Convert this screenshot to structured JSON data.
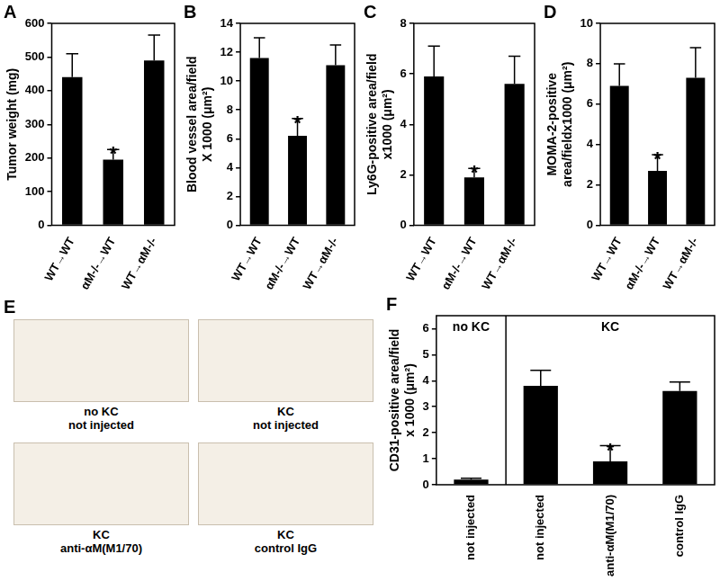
{
  "chart_data": [
    {
      "type": "bar",
      "panel": "A",
      "y_label": [
        "Tumor weight (mg)"
      ],
      "categories": [
        "WT→WT",
        "αM-/-→WT",
        "WT→αM-/-"
      ],
      "values": [
        440,
        195,
        490
      ],
      "errors": [
        70,
        30,
        75
      ],
      "color": "#000000",
      "ylim": [
        0,
        600
      ],
      "yticks": [
        0,
        100,
        200,
        300,
        400,
        500,
        600
      ],
      "grid": false,
      "annotations": [
        {
          "text": "*",
          "category": "αM-/-→WT"
        }
      ]
    },
    {
      "type": "bar",
      "panel": "B",
      "y_label": [
        "Blood vessel area/field",
        "X 1000 (μm²)"
      ],
      "categories": [
        "WT→WT",
        "αM-/-→WT",
        "WT→αM-/-"
      ],
      "values": [
        11.6,
        6.2,
        11.1
      ],
      "errors": [
        1.4,
        1.2,
        1.4
      ],
      "color": "#000000",
      "ylim": [
        0,
        14
      ],
      "yticks": [
        0,
        2,
        4,
        6,
        8,
        10,
        12,
        14
      ],
      "grid": false,
      "annotations": [
        {
          "text": "*",
          "category": "αM-/-→WT"
        }
      ]
    },
    {
      "type": "bar",
      "panel": "C",
      "y_label": [
        "Ly6G-positive area/field",
        "x1000 (μm²)"
      ],
      "categories": [
        "WT→WT",
        "αM-/-→WT",
        "WT→αM-/-"
      ],
      "values": [
        5.9,
        1.9,
        5.6
      ],
      "errors": [
        1.2,
        0.35,
        1.1
      ],
      "color": "#000000",
      "ylim": [
        0,
        8
      ],
      "yticks": [
        0,
        2,
        4,
        6,
        8
      ],
      "grid": false,
      "annotations": [
        {
          "text": "*",
          "category": "αM-/-→WT"
        }
      ]
    },
    {
      "type": "bar",
      "panel": "D",
      "y_label": [
        "MOMA-2-positive",
        "area/fieldx1000 (μm²)"
      ],
      "categories": [
        "WT→WT",
        "αM-/-→WT",
        "WT→αM-/-"
      ],
      "values": [
        6.9,
        2.7,
        7.3
      ],
      "errors": [
        1.1,
        0.8,
        1.5
      ],
      "color": "#000000",
      "ylim": [
        0,
        10
      ],
      "yticks": [
        0,
        2,
        4,
        6,
        8,
        10
      ],
      "grid": false,
      "annotations": [
        {
          "text": "*",
          "category": "αM-/-→WT"
        }
      ]
    },
    {
      "type": "bar",
      "panel": "F",
      "y_label": [
        "CD31-positive area/field",
        "x 1000 (μm²)"
      ],
      "categories": [
        "not injected",
        "not injected",
        "anti-αM(M1/70)",
        "control IgG"
      ],
      "values": [
        0.2,
        3.8,
        0.9,
        3.6
      ],
      "errors": [
        0.05,
        0.6,
        0.6,
        0.35
      ],
      "color": "#000000",
      "ylim": [
        0,
        6.5
      ],
      "yticks": [
        0,
        1,
        2,
        3,
        4,
        5,
        6
      ],
      "grid": false,
      "groups": [
        {
          "label": "no KC",
          "span": 1
        },
        {
          "label": "KC",
          "span": 3
        }
      ],
      "annotations": [
        {
          "text": "*",
          "category": "anti-αM(M1/70)"
        }
      ]
    }
  ],
  "image_panel": {
    "panel": "E",
    "images": [
      {
        "caption": [
          "no KC",
          "not injected"
        ]
      },
      {
        "caption": [
          "KC",
          "not injected"
        ]
      },
      {
        "caption": [
          "KC",
          "anti-αM(M1/70)"
        ]
      },
      {
        "caption": [
          "KC",
          "control IgG"
        ]
      }
    ]
  }
}
